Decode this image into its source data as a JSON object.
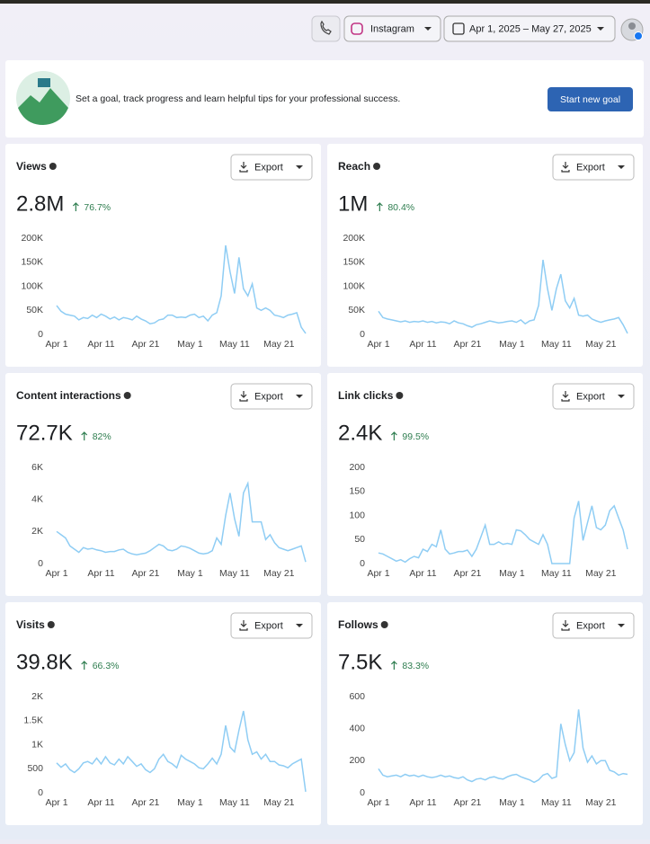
{
  "header": {
    "platform": "Instagram",
    "date_range": "Apr 1, 2025 – May 27, 2025"
  },
  "goal": {
    "text": "Set a goal, track progress and learn helpful tips for your professional success.",
    "button": "Start new goal"
  },
  "export_label": "Export",
  "categories": [
    "Apr 1",
    null,
    null,
    null,
    null,
    null,
    null,
    null,
    null,
    null,
    "Apr 11",
    null,
    null,
    null,
    null,
    null,
    null,
    null,
    null,
    null,
    "Apr 21",
    null,
    null,
    null,
    null,
    null,
    null,
    null,
    null,
    null,
    "May 1",
    null,
    null,
    null,
    null,
    null,
    null,
    null,
    null,
    null,
    "May 11",
    null,
    null,
    null,
    null,
    null,
    null,
    null,
    null,
    null,
    "May 21",
    null,
    null,
    null,
    null,
    null,
    null
  ],
  "cards": [
    {
      "title": "Views",
      "total": "2.8M",
      "change": "76.7%",
      "chart": {
        "type": "line",
        "color": "#8fcdf4",
        "ylim": [
          0,
          200000
        ],
        "yticks": [
          0,
          {
            "value": 50000,
            "label": "50K"
          },
          {
            "value": 100000,
            "label": "100K"
          },
          {
            "value": 150000,
            "label": "150K"
          },
          {
            "value": 200000,
            "label": "200K"
          }
        ],
        "values": [
          60000,
          48000,
          42000,
          40000,
          38000,
          30000,
          35000,
          33000,
          40000,
          35000,
          42000,
          38000,
          32000,
          36000,
          30000,
          35000,
          33000,
          30000,
          38000,
          32000,
          28000,
          22000,
          24000,
          30000,
          32000,
          40000,
          40000,
          35000,
          36000,
          35000,
          40000,
          42000,
          35000,
          38000,
          28000,
          40000,
          45000,
          80000,
          185000,
          130000,
          85000,
          160000,
          95000,
          80000,
          105000,
          55000,
          50000,
          55000,
          50000,
          40000,
          38000,
          35000,
          40000,
          42000,
          45000,
          15000,
          2000
        ]
      }
    },
    {
      "title": "Reach",
      "total": "1M",
      "change": "80.4%",
      "chart": {
        "type": "line",
        "color": "#8fcdf4",
        "ylim": [
          0,
          200000
        ],
        "yticks": [
          0,
          {
            "value": 50000,
            "label": "50K"
          },
          {
            "value": 100000,
            "label": "100K"
          },
          {
            "value": 150000,
            "label": "150K"
          },
          {
            "value": 200000,
            "label": "200K"
          }
        ],
        "values": [
          48000,
          35000,
          32000,
          30000,
          28000,
          26000,
          28000,
          25000,
          27000,
          26000,
          28000,
          25000,
          27000,
          24000,
          26000,
          25000,
          22000,
          28000,
          24000,
          22000,
          18000,
          15000,
          20000,
          22000,
          25000,
          28000,
          26000,
          24000,
          25000,
          27000,
          28000,
          25000,
          30000,
          22000,
          28000,
          30000,
          60000,
          155000,
          95000,
          50000,
          95000,
          125000,
          70000,
          55000,
          75000,
          40000,
          38000,
          40000,
          32000,
          28000,
          25000,
          28000,
          30000,
          32000,
          35000,
          20000,
          2000
        ]
      }
    },
    {
      "title": "Content interactions",
      "total": "72.7K",
      "change": "82%",
      "chart": {
        "type": "line",
        "color": "#8fcdf4",
        "ylim": [
          0,
          6000
        ],
        "yticks": [
          0,
          {
            "value": 2000,
            "label": "2K"
          },
          {
            "value": 4000,
            "label": "4K"
          },
          {
            "value": 6000,
            "label": "6K"
          }
        ],
        "values": [
          2000,
          1800,
          1600,
          1100,
          900,
          700,
          1000,
          900,
          950,
          850,
          800,
          700,
          750,
          750,
          850,
          900,
          700,
          600,
          550,
          600,
          650,
          800,
          1000,
          1200,
          1100,
          850,
          800,
          900,
          1100,
          1050,
          950,
          800,
          650,
          600,
          650,
          800,
          1600,
          1200,
          3000,
          4400,
          2800,
          1700,
          4400,
          5000,
          2600,
          2600,
          2600,
          1500,
          1800,
          1300,
          1000,
          900,
          800,
          900,
          1000,
          1100,
          100
        ]
      }
    },
    {
      "title": "Link clicks",
      "total": "2.4K",
      "change": "99.5%",
      "chart": {
        "type": "line",
        "color": "#8fcdf4",
        "ylim": [
          0,
          200
        ],
        "yticks": [
          0,
          50,
          100,
          150,
          200
        ],
        "values": [
          22,
          20,
          15,
          10,
          5,
          8,
          3,
          10,
          15,
          12,
          30,
          25,
          40,
          35,
          70,
          30,
          20,
          22,
          25,
          25,
          28,
          15,
          30,
          55,
          80,
          40,
          40,
          45,
          40,
          42,
          40,
          70,
          68,
          60,
          50,
          45,
          40,
          60,
          40,
          0,
          0,
          0,
          0,
          0,
          95,
          130,
          48,
          85,
          120,
          75,
          70,
          80,
          110,
          120,
          95,
          70,
          30
        ]
      }
    },
    {
      "title": "Visits",
      "total": "39.8K",
      "change": "66.3%",
      "chart": {
        "type": "line",
        "color": "#8fcdf4",
        "ylim": [
          0,
          2000
        ],
        "yticks": [
          0,
          500,
          {
            "value": 1000,
            "label": "1K"
          },
          {
            "value": 1500,
            "label": "1.5K"
          },
          {
            "value": 2000,
            "label": "2K"
          }
        ],
        "values": [
          620,
          530,
          600,
          480,
          420,
          500,
          620,
          650,
          600,
          720,
          600,
          750,
          620,
          580,
          700,
          600,
          750,
          650,
          550,
          600,
          480,
          420,
          500,
          700,
          800,
          650,
          600,
          520,
          780,
          700,
          650,
          600,
          520,
          500,
          600,
          720,
          600,
          800,
          1400,
          950,
          850,
          1300,
          1700,
          1100,
          800,
          850,
          700,
          800,
          650,
          650,
          580,
          560,
          520,
          600,
          650,
          700,
          20
        ]
      }
    },
    {
      "title": "Follows",
      "total": "7.5K",
      "change": "83.3%",
      "chart": {
        "type": "line",
        "color": "#8fcdf4",
        "ylim": [
          0,
          600
        ],
        "yticks": [
          0,
          200,
          400,
          600
        ],
        "values": [
          150,
          110,
          100,
          105,
          110,
          100,
          115,
          105,
          110,
          100,
          110,
          100,
          95,
          100,
          110,
          100,
          105,
          95,
          90,
          100,
          80,
          70,
          85,
          90,
          80,
          95,
          100,
          90,
          85,
          100,
          110,
          115,
          100,
          90,
          80,
          65,
          80,
          110,
          120,
          90,
          100,
          430,
          300,
          200,
          250,
          520,
          280,
          190,
          230,
          180,
          200,
          200,
          140,
          130,
          110,
          120,
          115
        ]
      }
    }
  ]
}
